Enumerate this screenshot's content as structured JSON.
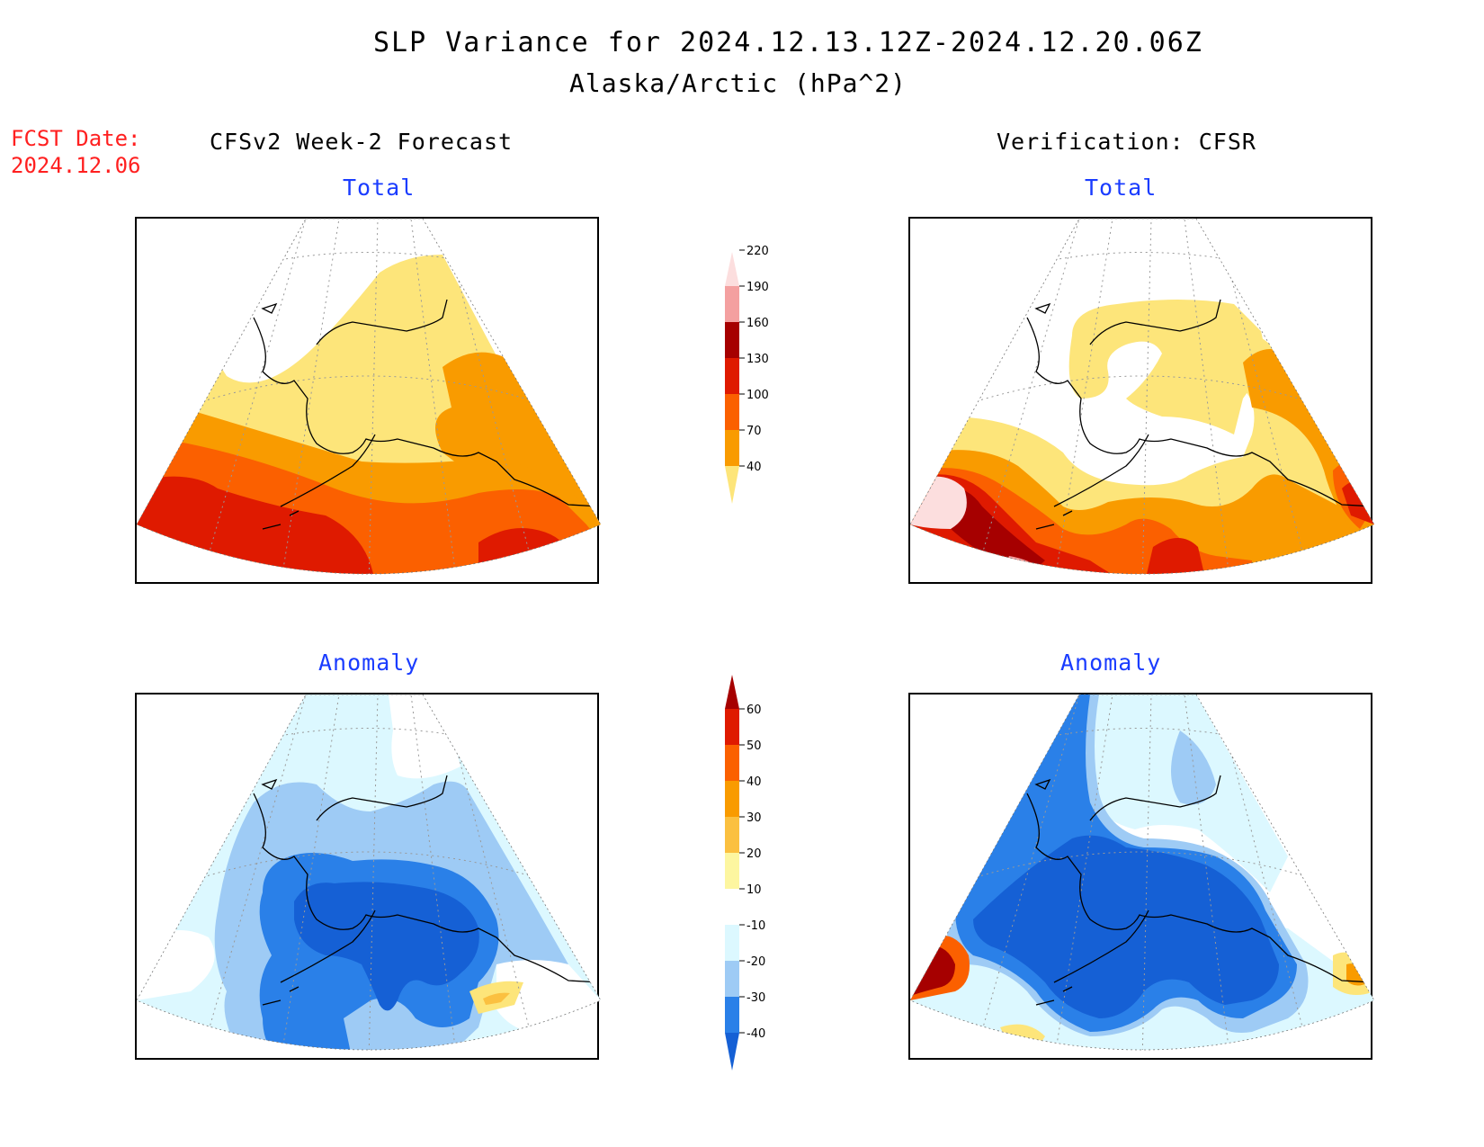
{
  "title": "SLP Variance for 2024.12.13.12Z-2024.12.20.06Z",
  "subtitle": "Alaska/Arctic (hPa^2)",
  "fcst_date_label": "FCST Date:",
  "fcst_date_value": "2024.12.06",
  "left_column_title": "CFSv2 Week-2 Forecast",
  "right_column_title": "Verification: CFSR",
  "panels": {
    "forecast_total": {
      "label": "Total"
    },
    "verification_total": {
      "label": "Total"
    },
    "forecast_anomaly": {
      "label": "Anomaly"
    },
    "verification_anomaly": {
      "label": "Anomaly"
    }
  },
  "colorbar_total": {
    "levels": [
      "40",
      "70",
      "100",
      "130",
      "160",
      "190",
      "220"
    ],
    "colors": [
      "#fde57a",
      "#f99b00",
      "#fb6000",
      "#df1a00",
      "#a60000",
      "#f4a0a0",
      "#fcdede"
    ]
  },
  "colorbar_anomaly": {
    "levels": [
      "-40",
      "-30",
      "-20",
      "-10",
      "10",
      "20",
      "30",
      "40",
      "50",
      "60"
    ],
    "colors": [
      "#1560d5",
      "#2a80e8",
      "#9ecbf5",
      "#dcf8ff",
      "#ffffff",
      "#fdf6a0",
      "#fbc040",
      "#f99b00",
      "#fb6000",
      "#df1a00",
      "#a60000"
    ]
  },
  "colors": {
    "fcst_text": "#ff2020",
    "panel_label": "#1a3cff",
    "white": "#ffffff"
  }
}
